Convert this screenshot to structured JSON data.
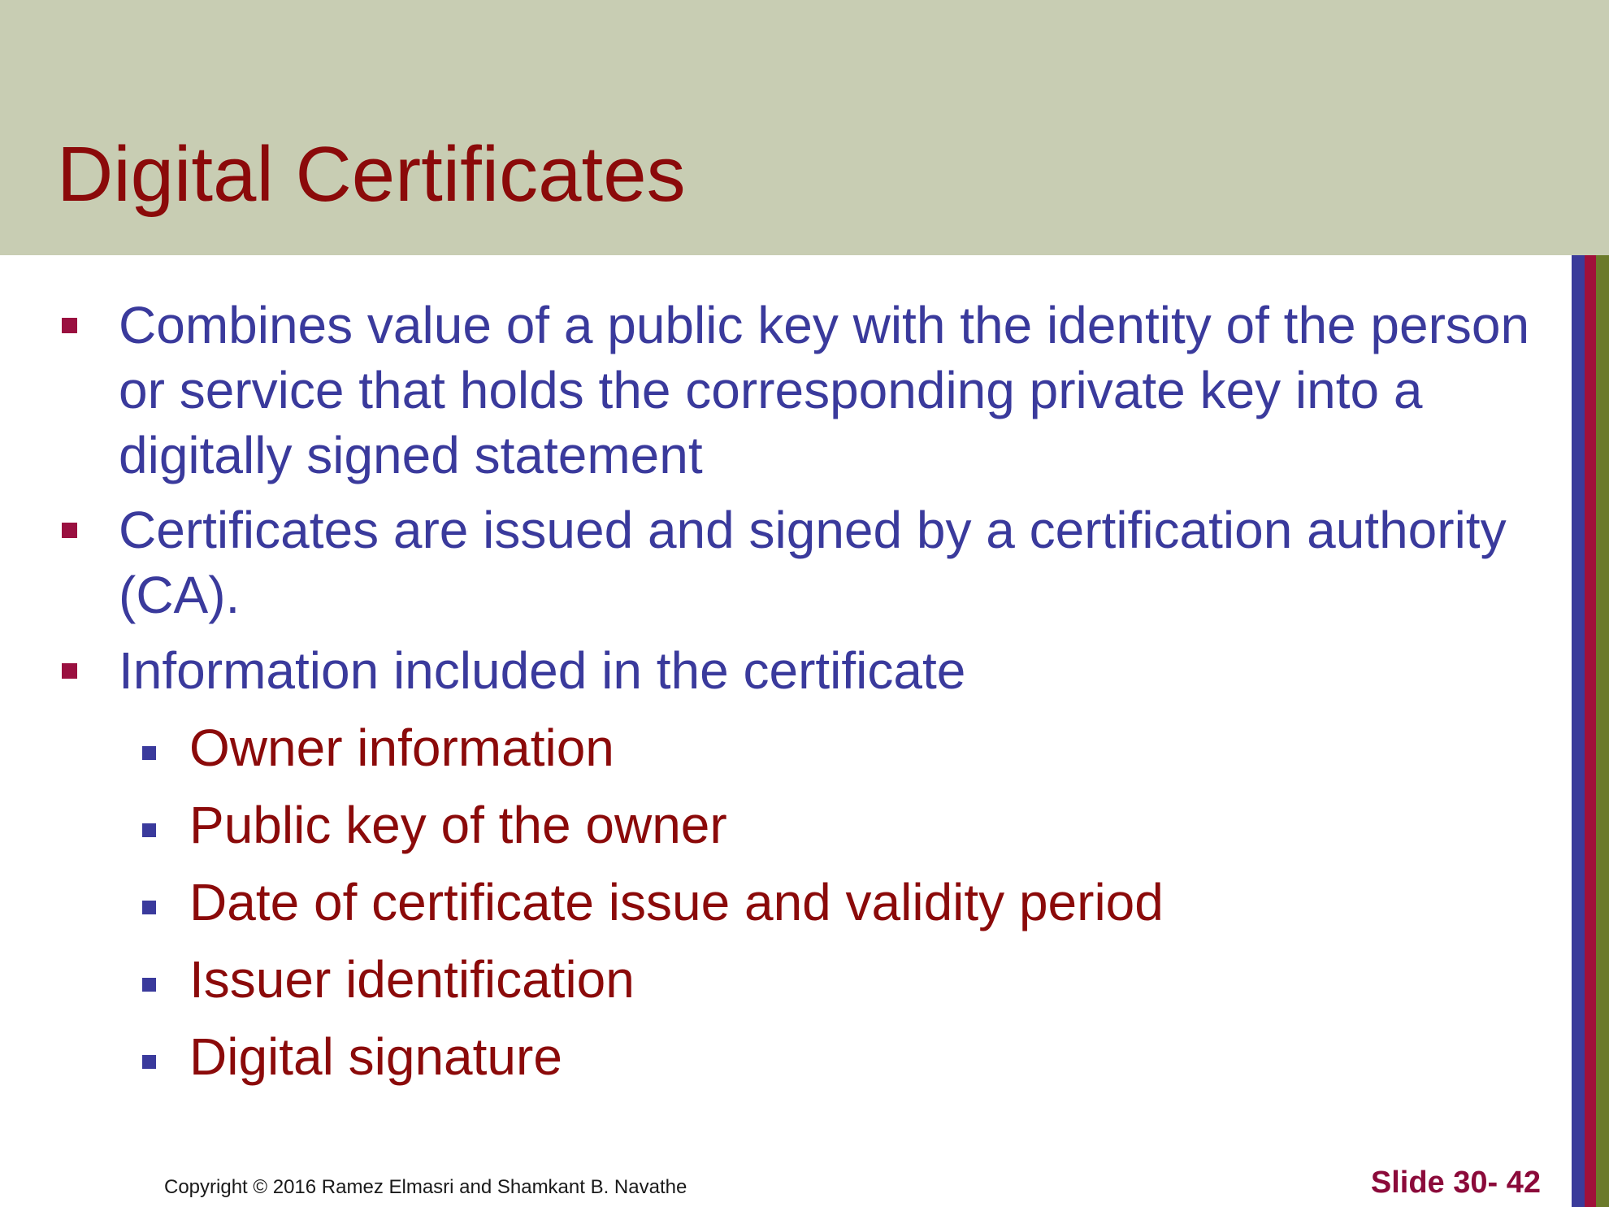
{
  "slide": {
    "title": "Digital Certificates",
    "bullets": [
      "Combines value of a public key with the identity of the person or service that holds the corresponding private key into a digitally signed statement",
      "Certificates are issued and signed by a certification authority (CA).",
      "Information included in the certificate"
    ],
    "sub_bullets": [
      "Owner information",
      "Public key of the owner",
      "Date of certificate issue and validity period",
      "Issuer identification",
      "Digital signature"
    ]
  },
  "footer": {
    "copyright": "Copyright © 2016 Ramez Elmasri and Shamkant B. Navathe",
    "slide_number": "Slide 30- 42"
  },
  "colors": {
    "header_band": "#c8cdb3",
    "title": "#8b0a0a",
    "bullet_text": "#3a3a9c",
    "sub_bullet_text": "#8b0a0a",
    "stripe_blue": "#3b3b9a",
    "stripe_red": "#a0103a",
    "stripe_green": "#6b7a2a"
  }
}
